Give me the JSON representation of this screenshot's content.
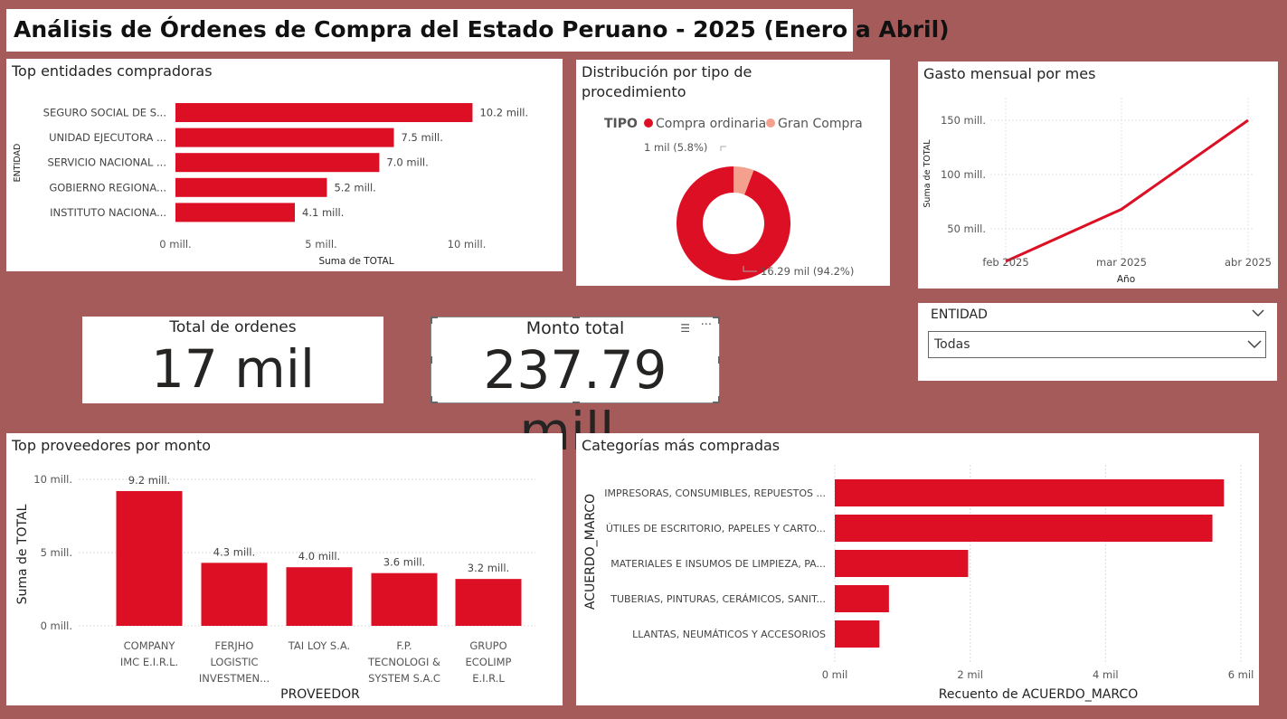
{
  "page": {
    "title": "Análisis de Órdenes de Compra del Estado Peruano - 2025 (Enero a Abril)"
  },
  "colors": {
    "accent": "#dc0f24",
    "light": "#f4a08f",
    "background": "#a65b5b"
  },
  "cards": {
    "orders": {
      "label": "Total de ordenes",
      "value": "17 mil"
    },
    "amount": {
      "label": "Monto total",
      "value": "237.79 mill."
    }
  },
  "slicer": {
    "title": "ENTIDAD",
    "selected": "Todas"
  },
  "chart_data": [
    {
      "id": "entities",
      "type": "bar",
      "orientation": "horizontal",
      "title": "Top entidades compradoras",
      "xlabel": "Suma de TOTAL",
      "ylabel": "ENTIDAD",
      "categories": [
        "SEGURO SOCIAL DE S...",
        "UNIDAD EJECUTORA ...",
        "SERVICIO NACIONAL ...",
        "GOBIERNO REGIONA...",
        "INSTITUTO NACIONA..."
      ],
      "values": [
        10.2,
        7.5,
        7.0,
        5.2,
        4.1
      ],
      "data_labels": [
        "10.2 mill.",
        "7.5 mill.",
        "7.0 mill.",
        "5.2 mill.",
        "4.1 mill."
      ],
      "ticks": [
        0,
        5,
        10
      ],
      "tick_labels": [
        "0 mill.",
        "5 mill.",
        "10 mill."
      ],
      "xlim": [
        0,
        10.5
      ]
    },
    {
      "id": "procedure",
      "type": "pie",
      "subtype": "donut",
      "title": "Distribución por tipo de procedimiento",
      "title_lines": [
        "Distribución por tipo de",
        "procedimiento"
      ],
      "legend_title": "TIPO",
      "legend": "top-left",
      "slices": [
        {
          "label": "Compra ordinaria",
          "value": 16.29,
          "data_label": "16.29 mil (94.2%)"
        },
        {
          "label": "Gran Compra",
          "value": 1,
          "data_label": "1 mil (5.8%)"
        }
      ]
    },
    {
      "id": "monthly",
      "type": "line",
      "title": "Gasto mensual por mes",
      "xlabel": "Año",
      "ylabel": "Suma de TOTAL",
      "categories": [
        "feb 2025",
        "mar 2025",
        "abr 2025"
      ],
      "values": [
        20,
        68,
        150
      ],
      "ticks": [
        50,
        100,
        150
      ],
      "tick_labels": [
        "50 mill.",
        "100 mill.",
        "150 mill."
      ],
      "ylim": [
        10,
        160
      ],
      "grid": true
    },
    {
      "id": "suppliers",
      "type": "bar",
      "orientation": "vertical",
      "title": "Top proveedores por monto",
      "xlabel": "PROVEEDOR",
      "ylabel": "Suma de TOTAL",
      "categories": [
        [
          "COMPANY",
          "IMC E.I.R.L."
        ],
        [
          "FERJHO",
          "LOGISTIC",
          "INVESTMEN..."
        ],
        [
          "TAI LOY S.A."
        ],
        [
          "F.P.",
          "TECNOLOGI &",
          "SYSTEM S.A.C"
        ],
        [
          "GRUPO",
          "ECOLIMP",
          "E.I.R.L"
        ]
      ],
      "values": [
        9.2,
        4.3,
        4.0,
        3.6,
        3.2
      ],
      "data_labels": [
        "9.2 mill.",
        "4.3 mill.",
        "4.0 mill.",
        "3.6 mill.",
        "3.2 mill."
      ],
      "ticks": [
        0,
        5,
        10
      ],
      "tick_labels": [
        "0 mill.",
        "5 mill.",
        "10 mill."
      ],
      "ylim": [
        0,
        10.5
      ],
      "grid": true
    },
    {
      "id": "categories",
      "type": "bar",
      "orientation": "horizontal",
      "title": "Categorías más compradas",
      "xlabel": "Recuento de ACUERDO_MARCO",
      "ylabel": "ACUERDO_MARCO",
      "categories": [
        "IMPRESORAS, CONSUMIBLES, REPUESTOS ...",
        "ÚTILES DE ESCRITORIO, PAPELES Y CARTO...",
        "MATERIALES E INSUMOS DE LIMPIEZA, PA...",
        "TUBERIAS, PINTURAS, CERÁMICOS, SANIT...",
        "LLANTAS, NEUMÁTICOS Y ACCESORIOS"
      ],
      "values": [
        5.75,
        5.58,
        1.97,
        0.8,
        0.66
      ],
      "ticks": [
        0,
        2,
        4,
        6
      ],
      "tick_labels": [
        "0 mil",
        "2 mil",
        "4 mil",
        "6 mil"
      ],
      "xlim": [
        0,
        6.1
      ],
      "grid": true
    }
  ]
}
